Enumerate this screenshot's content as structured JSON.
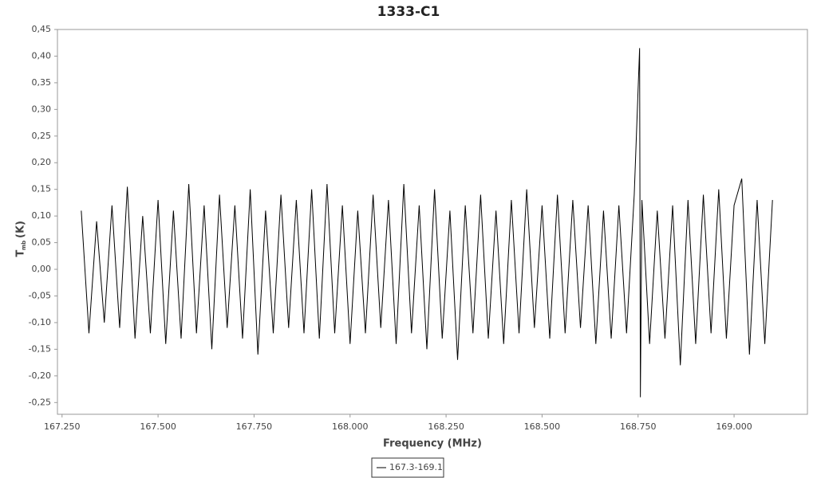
{
  "chart_data": {
    "type": "line",
    "title": "1333-C1",
    "xlabel": "Frequency (MHz)",
    "ylabel": "T",
    "ylabel_sub": "mb",
    "ylabel_unit": "(K)",
    "x": [
      167.3,
      167.32,
      167.34,
      167.36,
      167.38,
      167.4,
      167.42,
      167.44,
      167.46,
      167.48,
      167.5,
      167.52,
      167.54,
      167.56,
      167.58,
      167.6,
      167.62,
      167.64,
      167.66,
      167.68,
      167.7,
      167.72,
      167.74,
      167.76,
      167.78,
      167.8,
      167.82,
      167.84,
      167.86,
      167.88,
      167.9,
      167.92,
      167.94,
      167.96,
      167.98,
      168.0,
      168.02,
      168.04,
      168.06,
      168.08,
      168.1,
      168.12,
      168.14,
      168.16,
      168.18,
      168.2,
      168.22,
      168.24,
      168.26,
      168.28,
      168.3,
      168.32,
      168.34,
      168.36,
      168.38,
      168.4,
      168.42,
      168.44,
      168.46,
      168.48,
      168.5,
      168.52,
      168.54,
      168.56,
      168.58,
      168.6,
      168.62,
      168.64,
      168.66,
      168.68,
      168.7,
      168.72,
      168.74,
      168.754,
      168.756,
      168.76,
      168.78,
      168.8,
      168.82,
      168.84,
      168.86,
      168.88,
      168.9,
      168.92,
      168.94,
      168.96,
      168.98,
      169.0,
      169.02,
      169.04,
      169.06,
      169.08,
      169.1
    ],
    "series": [
      {
        "name": "167.3-169.1",
        "color": "#000000",
        "values": [
          0.11,
          -0.12,
          0.09,
          -0.1,
          0.12,
          -0.11,
          0.155,
          -0.13,
          0.1,
          -0.12,
          0.13,
          -0.14,
          0.11,
          -0.13,
          0.16,
          -0.12,
          0.12,
          -0.15,
          0.14,
          -0.11,
          0.12,
          -0.13,
          0.15,
          -0.16,
          0.11,
          -0.12,
          0.14,
          -0.11,
          0.13,
          -0.12,
          0.15,
          -0.13,
          0.16,
          -0.12,
          0.12,
          -0.14,
          0.11,
          -0.12,
          0.14,
          -0.11,
          0.13,
          -0.14,
          0.16,
          -0.12,
          0.12,
          -0.15,
          0.15,
          -0.13,
          0.11,
          -0.17,
          0.12,
          -0.12,
          0.14,
          -0.13,
          0.11,
          -0.14,
          0.13,
          -0.12,
          0.15,
          -0.11,
          0.12,
          -0.13,
          0.14,
          -0.12,
          0.13,
          -0.11,
          0.12,
          -0.14,
          0.11,
          -0.13,
          0.12,
          -0.12,
          0.14,
          0.415,
          -0.24,
          0.13,
          -0.14,
          0.11,
          -0.13,
          0.12,
          -0.18,
          0.13,
          -0.14,
          0.14,
          -0.12,
          0.15,
          -0.13,
          0.12,
          0.17,
          -0.16,
          0.13,
          -0.14,
          0.13
        ]
      }
    ],
    "xlim": [
      167.238,
      169.191
    ],
    "ylim": [
      -0.272,
      0.45
    ],
    "xticks": [
      {
        "value": 167.25,
        "label": "167.250"
      },
      {
        "value": 167.5,
        "label": "167.500"
      },
      {
        "value": 167.75,
        "label": "167.750"
      },
      {
        "value": 168.0,
        "label": "168.000"
      },
      {
        "value": 168.25,
        "label": "168.250"
      },
      {
        "value": 168.5,
        "label": "168.500"
      },
      {
        "value": 168.75,
        "label": "168.750"
      },
      {
        "value": 169.0,
        "label": "169.000"
      }
    ],
    "yticks": [
      {
        "value": -0.25,
        "label": "-0,25"
      },
      {
        "value": -0.2,
        "label": "-0,20"
      },
      {
        "value": -0.15,
        "label": "-0,15"
      },
      {
        "value": -0.1,
        "label": "-0,10"
      },
      {
        "value": -0.05,
        "label": "-0,05"
      },
      {
        "value": 0,
        "label": "0,00"
      },
      {
        "value": 0.05,
        "label": "0,05"
      },
      {
        "value": 0.1,
        "label": "0,10"
      },
      {
        "value": 0.15,
        "label": "0,15"
      },
      {
        "value": 0.2,
        "label": "0,20"
      },
      {
        "value": 0.25,
        "label": "0,25"
      },
      {
        "value": 0.3,
        "label": "0,30"
      },
      {
        "value": 0.35,
        "label": "0,35"
      },
      {
        "value": 0.4,
        "label": "0,40"
      },
      {
        "value": 0.45,
        "label": "0,45"
      }
    ],
    "grid": false
  }
}
